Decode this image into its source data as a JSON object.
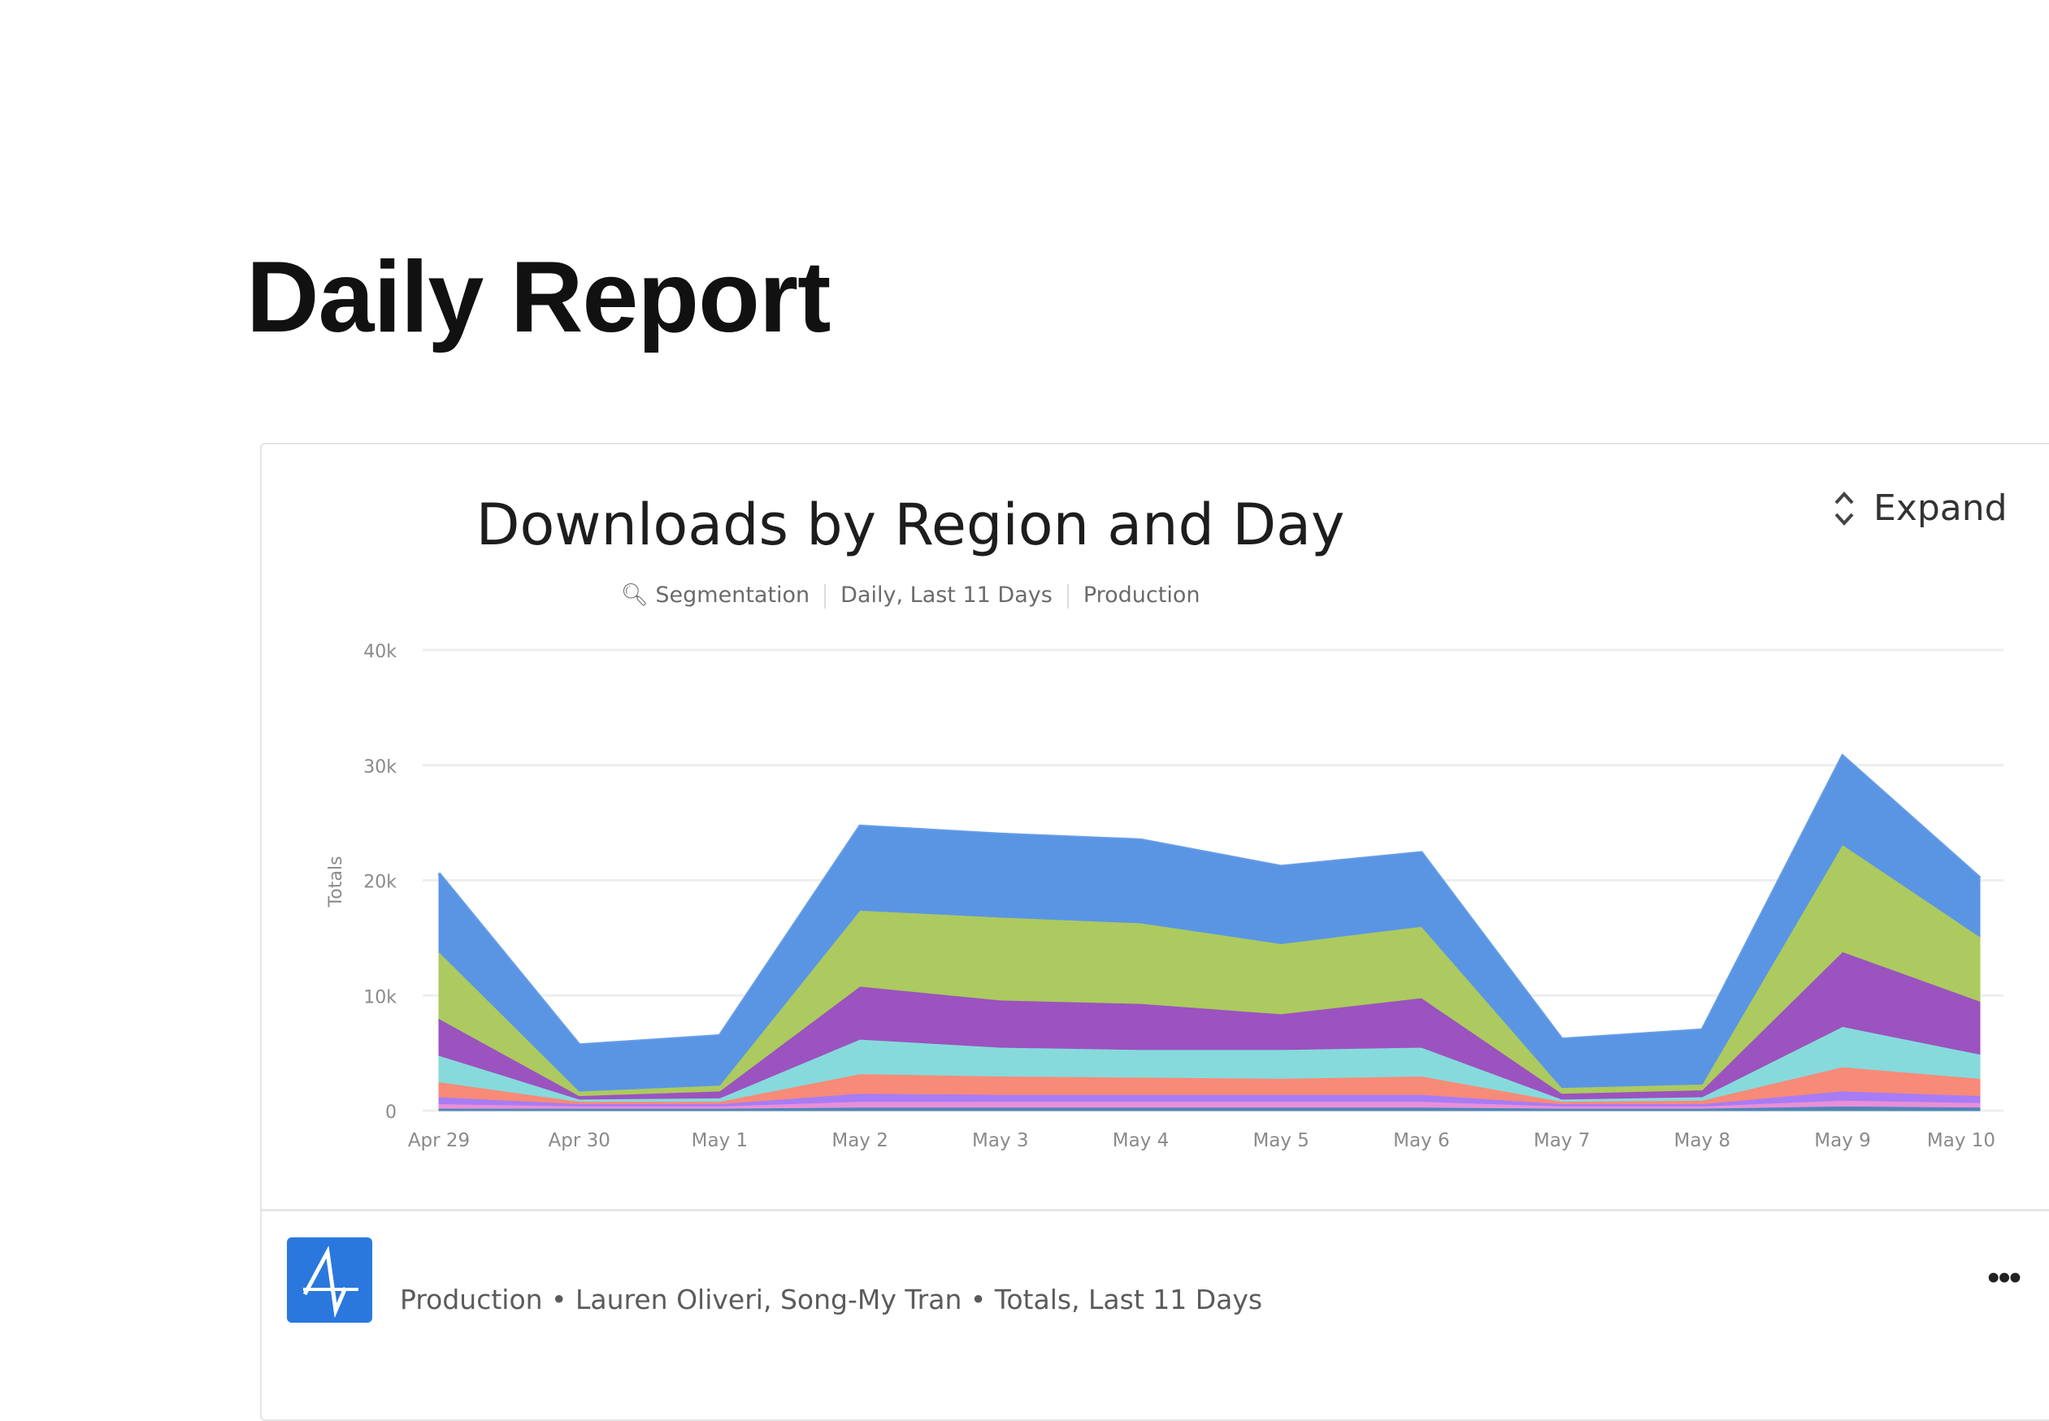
{
  "page": {
    "title": "Daily Report"
  },
  "card": {
    "title": "Downloads by Region and Day",
    "expand_label": "Expand",
    "subtitle": {
      "type": "Segmentation",
      "range": "Daily, Last 11 Days",
      "project": "Production"
    },
    "footer": {
      "text": "Production • Lauren Oliveri, Song-My Tran • Totals, Last 11 Days",
      "more_label": "•••"
    }
  },
  "chart_data": {
    "type": "area",
    "stacked": true,
    "title": "Downloads by Region and Day",
    "xlabel": "",
    "ylabel": "Totals",
    "ylim": [
      0,
      40000
    ],
    "yticks": [
      0,
      10000,
      20000,
      30000,
      40000
    ],
    "ytick_labels": [
      "0",
      "10k",
      "20k",
      "30k",
      "40k"
    ],
    "grid": true,
    "categories": [
      "Apr 29",
      "Apr 30",
      "May 1",
      "May 2",
      "May 3",
      "May 4",
      "May 5",
      "May 6",
      "May 7",
      "May 8",
      "May 9",
      "May 10"
    ],
    "series": [
      {
        "color": "#4f86b4",
        "values": [
          200,
          200,
          200,
          300,
          300,
          300,
          300,
          300,
          200,
          200,
          400,
          300
        ]
      },
      {
        "color": "#e88fd8",
        "values": [
          400,
          200,
          200,
          500,
          500,
          500,
          500,
          500,
          200,
          200,
          500,
          400
        ]
      },
      {
        "color": "#a77cf5",
        "values": [
          600,
          200,
          200,
          700,
          600,
          600,
          600,
          600,
          200,
          200,
          800,
          600
        ]
      },
      {
        "color": "#f88a78",
        "values": [
          1300,
          200,
          200,
          1700,
          1600,
          1500,
          1400,
          1600,
          200,
          300,
          2100,
          1500
        ]
      },
      {
        "color": "#86dadc",
        "values": [
          2300,
          200,
          300,
          3000,
          2500,
          2400,
          2500,
          2500,
          200,
          300,
          3500,
          2100
        ]
      },
      {
        "color": "#9b53bf",
        "values": [
          3200,
          300,
          600,
          4600,
          4100,
          4000,
          3100,
          4300,
          500,
          600,
          6500,
          4600
        ]
      },
      {
        "color": "#acca5f",
        "values": [
          5800,
          400,
          500,
          6600,
          7200,
          7000,
          6100,
          6200,
          500,
          500,
          9300,
          5600
        ]
      },
      {
        "color": "#5a95e4",
        "values": [
          6800,
          4000,
          4300,
          7300,
          7200,
          7200,
          6700,
          6400,
          4200,
          4700,
          7700,
          5100
        ]
      }
    ]
  }
}
